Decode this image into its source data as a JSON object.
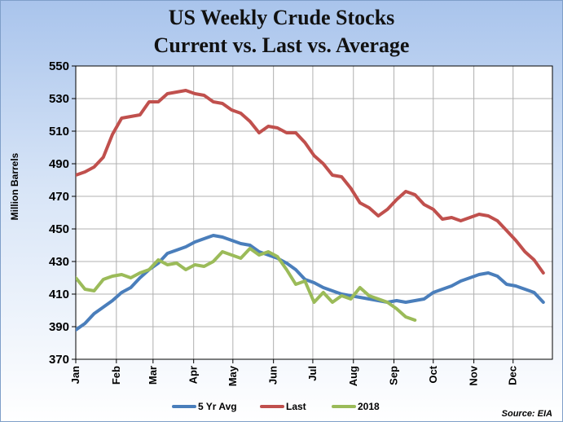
{
  "chart_data": {
    "type": "line",
    "title": "US Weekly Crude Stocks",
    "subtitle": "Current vs. Last vs. Average",
    "ylabel": "Million Barrels",
    "xlabel": "",
    "ylim": [
      370,
      550
    ],
    "yticks": [
      370,
      390,
      410,
      430,
      450,
      470,
      490,
      510,
      530,
      550
    ],
    "xlim": [
      1,
      53
    ],
    "months": [
      {
        "label": "Jan",
        "week": 1
      },
      {
        "label": "Feb",
        "week": 5.43
      },
      {
        "label": "Mar",
        "week": 9.43
      },
      {
        "label": "Apr",
        "week": 13.86
      },
      {
        "label": "May",
        "week": 18.14
      },
      {
        "label": "Jun",
        "week": 22.57
      },
      {
        "label": "Jul",
        "week": 26.86
      },
      {
        "label": "Aug",
        "week": 31.29
      },
      {
        "label": "Sep",
        "week": 35.71
      },
      {
        "label": "Oct",
        "week": 40
      },
      {
        "label": "Nov",
        "week": 44.43
      },
      {
        "label": "Dec",
        "week": 48.71
      }
    ],
    "grid": true,
    "legend_position": "bottom",
    "source": "Source: EIA",
    "series": [
      {
        "name": "5 Yr Avg",
        "color": "#4a7ebb",
        "start_week": 1,
        "values": [
          388,
          392,
          398,
          402,
          406,
          411,
          414,
          420,
          425,
          429,
          435,
          437,
          439,
          442,
          444,
          446,
          445,
          443,
          441,
          440,
          436,
          434,
          432,
          429,
          425,
          419,
          417,
          414,
          412,
          410,
          409,
          408,
          407,
          406,
          405,
          406,
          405,
          406,
          407,
          411,
          413,
          415,
          418,
          420,
          422,
          423,
          421,
          416,
          415,
          413,
          411,
          405
        ]
      },
      {
        "name": "Last",
        "color": "#c0504d",
        "start_week": 1,
        "values": [
          483,
          485,
          488,
          494,
          508,
          518,
          519,
          520,
          528,
          528,
          533,
          534,
          535,
          533,
          532,
          528,
          527,
          523,
          521,
          516,
          509,
          513,
          512,
          509,
          509,
          503,
          495,
          490,
          483,
          482,
          475,
          466,
          463,
          458,
          462,
          468,
          473,
          471,
          465,
          462,
          456,
          457,
          455,
          457,
          459,
          458,
          455,
          449,
          443,
          436,
          431,
          423
        ]
      },
      {
        "name": "2018",
        "color": "#9bbb59",
        "start_week": 1,
        "values": [
          420,
          413,
          412,
          419,
          421,
          422,
          420,
          423,
          425,
          431,
          428,
          429,
          425,
          428,
          427,
          430,
          436,
          434,
          432,
          438,
          434,
          436,
          433,
          425,
          416,
          418,
          405,
          411,
          405,
          409,
          407,
          414,
          409,
          407,
          405,
          401,
          396,
          394
        ]
      }
    ]
  }
}
